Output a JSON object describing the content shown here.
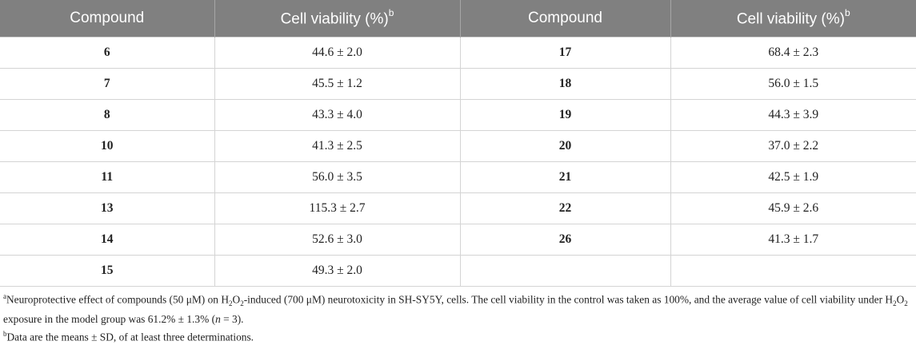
{
  "headers": {
    "compound": "Compound",
    "viability": "Cell viability (%)",
    "viability_sup": "b"
  },
  "rows": [
    {
      "c1": "6",
      "v1": "44.6 ± 2.0",
      "c2": "17",
      "v2": "68.4 ± 2.3"
    },
    {
      "c1": "7",
      "v1": "45.5 ± 1.2",
      "c2": "18",
      "v2": "56.0 ± 1.5"
    },
    {
      "c1": "8",
      "v1": "43.3 ± 4.0",
      "c2": "19",
      "v2": "44.3 ± 3.9"
    },
    {
      "c1": "10",
      "v1": "41.3 ± 2.5",
      "c2": "20",
      "v2": "37.0 ± 2.2"
    },
    {
      "c1": "11",
      "v1": "56.0 ± 3.5",
      "c2": "21",
      "v2": "42.5 ± 1.9"
    },
    {
      "c1": "13",
      "v1": "115.3 ± 2.7",
      "c2": "22",
      "v2": "45.9 ± 2.6"
    },
    {
      "c1": "14",
      "v1": "52.6 ± 3.0",
      "c2": "26",
      "v2": "41.3 ± 1.7"
    },
    {
      "c1": "15",
      "v1": "49.3 ± 2.0",
      "c2": "",
      "v2": ""
    }
  ],
  "footnotes": {
    "a": {
      "marker": "a",
      "p1": "Neuroprotective effect of compounds (50 μM) on H",
      "sub1": "2",
      "p2": "O",
      "sub2": "2",
      "p3": "-induced (700 μM) neurotoxicity in SH-SY5Y, cells. The cell viability in the control was taken as 100%, and the average value of cell viability under H",
      "sub3": "2",
      "p4": "O",
      "sub4": "2",
      "p5": " exposure in the model group was 61.2% ± 1.3% (",
      "n_italic": "n",
      "p6": " = 3)."
    },
    "b": {
      "marker": "b",
      "text": "Data are the means ± SD, of at least three determinations."
    }
  }
}
